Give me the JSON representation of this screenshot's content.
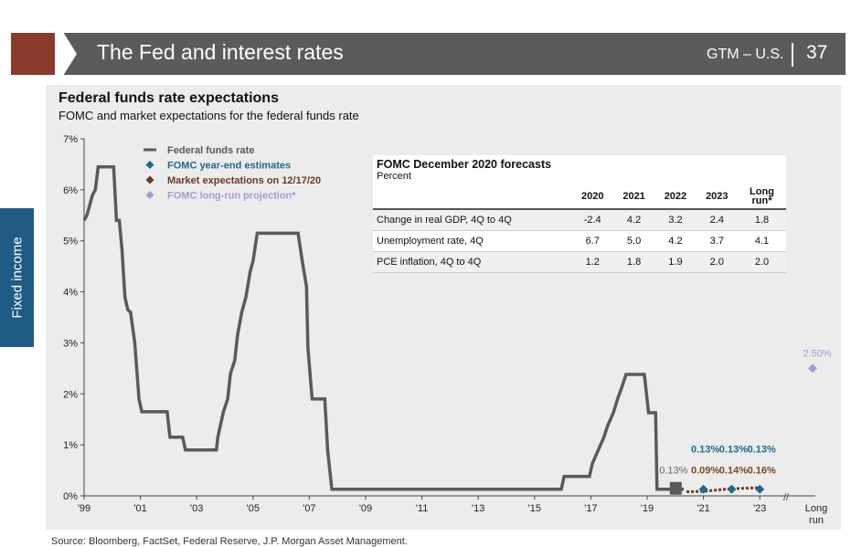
{
  "header": {
    "title": "The Fed and interest rates",
    "tag": "GTM – U.S.",
    "page": "37"
  },
  "side_tab": "Fixed income",
  "source": "Source: Bloomberg, FactSet, Federal Reserve, J.P. Morgan Asset Management.",
  "table": {
    "title": "FOMC December 2020 forecasts",
    "unit": "Percent",
    "columns": [
      "",
      "2020",
      "2021",
      "2022",
      "2023",
      "Long run*"
    ],
    "rows": [
      [
        "Change in real GDP, 4Q to 4Q",
        "-2.4",
        "4.2",
        "3.2",
        "2.4",
        "1.8"
      ],
      [
        "Unemployment rate, 4Q",
        "6.7",
        "5.0",
        "4.2",
        "3.7",
        "4.1"
      ],
      [
        "PCE inflation, 4Q to 4Q",
        "1.2",
        "1.8",
        "1.9",
        "2.0",
        "2.0"
      ]
    ]
  },
  "chart_data": {
    "type": "line",
    "title": "Federal funds rate expectations",
    "subtitle": "FOMC and market expectations for the federal funds rate",
    "ylim": [
      0,
      7
    ],
    "yticks": [
      "0%",
      "1%",
      "2%",
      "3%",
      "4%",
      "5%",
      "6%",
      "7%"
    ],
    "xticks": [
      {
        "v": 1999,
        "l": "'99"
      },
      {
        "v": 2001,
        "l": "'01"
      },
      {
        "v": 2003,
        "l": "'03"
      },
      {
        "v": 2005,
        "l": "'05"
      },
      {
        "v": 2007,
        "l": "'07"
      },
      {
        "v": 2009,
        "l": "'09"
      },
      {
        "v": 2011,
        "l": "'11"
      },
      {
        "v": 2013,
        "l": "'13"
      },
      {
        "v": 2015,
        "l": "'15"
      },
      {
        "v": 2017,
        "l": "'17"
      },
      {
        "v": 2019,
        "l": "'19"
      },
      {
        "v": 2021,
        "l": "'21"
      },
      {
        "v": 2023,
        "l": "'23"
      }
    ],
    "long_run_label": "Long run",
    "legend": [
      {
        "name": "Federal funds rate",
        "color": "#5a5a5a",
        "shape": "line"
      },
      {
        "name": "FOMC year-end estimates",
        "color": "#1f6a8a",
        "shape": "diamond"
      },
      {
        "name": "Market expectations on 12/17/20",
        "color": "#6b3a22",
        "shape": "diamond"
      },
      {
        "name": "FOMC long-run projection*",
        "color": "#a49bd6",
        "shape": "diamond"
      }
    ],
    "series": [
      {
        "name": "Federal funds rate",
        "points": [
          [
            1999,
            5.4
          ],
          [
            1999.1,
            5.5
          ],
          [
            1999.3,
            5.9
          ],
          [
            1999.4,
            6.0
          ],
          [
            1999.5,
            6.45
          ],
          [
            2000.05,
            6.45
          ],
          [
            2000.15,
            5.4
          ],
          [
            2000.25,
            5.4
          ],
          [
            2000.35,
            4.8
          ],
          [
            2000.45,
            3.9
          ],
          [
            2000.55,
            3.65
          ],
          [
            2000.65,
            3.6
          ],
          [
            2000.8,
            3.0
          ],
          [
            2000.95,
            1.9
          ],
          [
            2001.05,
            1.65
          ],
          [
            2001.95,
            1.65
          ],
          [
            2002.05,
            1.15
          ],
          [
            2002.5,
            1.15
          ],
          [
            2002.6,
            0.9
          ],
          [
            2003.7,
            0.9
          ],
          [
            2003.75,
            1.15
          ],
          [
            2003.85,
            1.4
          ],
          [
            2003.95,
            1.65
          ],
          [
            2004.1,
            1.9
          ],
          [
            2004.2,
            2.4
          ],
          [
            2004.35,
            2.65
          ],
          [
            2004.45,
            3.15
          ],
          [
            2004.6,
            3.6
          ],
          [
            2004.75,
            3.9
          ],
          [
            2004.9,
            4.4
          ],
          [
            2005.0,
            4.6
          ],
          [
            2005.15,
            5.15
          ],
          [
            2006.6,
            5.15
          ],
          [
            2006.75,
            4.6
          ],
          [
            2006.9,
            4.1
          ],
          [
            2006.95,
            2.9
          ],
          [
            2007.1,
            1.9
          ],
          [
            2007.55,
            1.9
          ],
          [
            2007.65,
            0.9
          ],
          [
            2007.8,
            0.13
          ],
          [
            2015.95,
            0.13
          ],
          [
            2016.05,
            0.38
          ],
          [
            2016.95,
            0.38
          ],
          [
            2017.05,
            0.63
          ],
          [
            2017.25,
            0.88
          ],
          [
            2017.45,
            1.13
          ],
          [
            2017.6,
            1.38
          ],
          [
            2017.8,
            1.63
          ],
          [
            2017.95,
            1.9
          ],
          [
            2018.1,
            2.13
          ],
          [
            2018.25,
            2.38
          ],
          [
            2018.9,
            2.38
          ],
          [
            2019.05,
            1.63
          ],
          [
            2019.3,
            1.63
          ],
          [
            2019.35,
            0.13
          ],
          [
            2020.3,
            0.13
          ]
        ]
      },
      {
        "name": "Current rate",
        "points": [
          [
            2020,
            0.13
          ]
        ],
        "label": "0.13%"
      },
      {
        "name": "Market expectations on 12/17/20",
        "points": [
          [
            2020.4,
            0.08
          ],
          [
            2021,
            0.09
          ],
          [
            2022,
            0.14
          ],
          [
            2023,
            0.16
          ]
        ],
        "labels": [
          "0.09%",
          "0.14%",
          "0.16%"
        ]
      },
      {
        "name": "FOMC year-end estimates",
        "points": [
          [
            2021,
            0.13
          ],
          [
            2022,
            0.13
          ],
          [
            2023,
            0.13
          ]
        ],
        "labels": [
          "0.13%",
          "0.13%",
          "0.13%"
        ]
      },
      {
        "name": "FOMC long-run projection*",
        "points": [
          [
            "Long run",
            2.5
          ]
        ],
        "label": "2.50%"
      }
    ]
  }
}
